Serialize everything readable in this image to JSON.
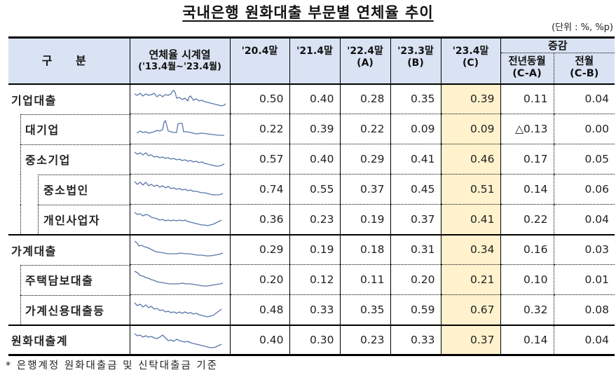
{
  "title": "국내은행 원화대출 부문별 연체율 추이",
  "unit_note": "(단위 : %, %p)",
  "colors": {
    "header_bg": "#dae3f3",
    "highlight_col": "#fff2cc",
    "sparkline": "#5a76a8"
  },
  "table": {
    "headers": {
      "category": "구  분",
      "sparkline_line1": "연체율 시계열",
      "sparkline_line2": "('13.4월~'23.4월)",
      "col_2020": "'20.4말",
      "col_2021": "'21.4말",
      "col_2022_line1": "'22.4말",
      "col_2022_line2": "(A)",
      "col_2303_line1": "'23.3말",
      "col_2303_line2": "(B)",
      "col_2304_line1": "'23.4말",
      "col_2304_line2": "(C)",
      "change_group": "증감",
      "change_yoy_line1": "전년동월",
      "change_yoy_line2": "(C-A)",
      "change_mom_line1": "전월",
      "change_mom_line2": "(C-B)"
    },
    "rows": [
      {
        "label": "기업대출",
        "level": 0,
        "v2020": "0.50",
        "v2021": "0.40",
        "v2022": "0.28",
        "v2303": "0.35",
        "v2304": "0.39",
        "yoy": "0.11",
        "mom": "0.04"
      },
      {
        "label": "대기업",
        "level": 1,
        "v2020": "0.22",
        "v2021": "0.39",
        "v2022": "0.22",
        "v2303": "0.09",
        "v2304": "0.09",
        "yoy": "△0.13",
        "mom": "0.00"
      },
      {
        "label": "중소기업",
        "level": 1,
        "v2020": "0.57",
        "v2021": "0.40",
        "v2022": "0.29",
        "v2303": "0.41",
        "v2304": "0.46",
        "yoy": "0.17",
        "mom": "0.05"
      },
      {
        "label": "중소법인",
        "level": 2,
        "v2020": "0.74",
        "v2021": "0.55",
        "v2022": "0.37",
        "v2303": "0.45",
        "v2304": "0.51",
        "yoy": "0.14",
        "mom": "0.06"
      },
      {
        "label": "개인사업자",
        "level": 2,
        "v2020": "0.36",
        "v2021": "0.23",
        "v2022": "0.19",
        "v2303": "0.37",
        "v2304": "0.41",
        "yoy": "0.22",
        "mom": "0.04"
      },
      {
        "label": "가계대출",
        "level": 0,
        "v2020": "0.29",
        "v2021": "0.19",
        "v2022": "0.18",
        "v2303": "0.31",
        "v2304": "0.34",
        "yoy": "0.16",
        "mom": "0.03"
      },
      {
        "label": "주택담보대출",
        "level": 1,
        "v2020": "0.20",
        "v2021": "0.12",
        "v2022": "0.11",
        "v2303": "0.20",
        "v2304": "0.21",
        "yoy": "0.10",
        "mom": "0.01"
      },
      {
        "label": "가계신용대출등",
        "level": 1,
        "v2020": "0.48",
        "v2021": "0.33",
        "v2022": "0.35",
        "v2303": "0.59",
        "v2304": "0.67",
        "yoy": "0.32",
        "mom": "0.08"
      },
      {
        "label": "원화대출계",
        "level": 0,
        "v2020": "0.40",
        "v2021": "0.30",
        "v2022": "0.23",
        "v2303": "0.33",
        "v2304": "0.37",
        "yoy": "0.14",
        "mom": "0.04"
      }
    ]
  },
  "footnote": "* 은행계정 원화대출금 및 신탁대출금 기준"
}
